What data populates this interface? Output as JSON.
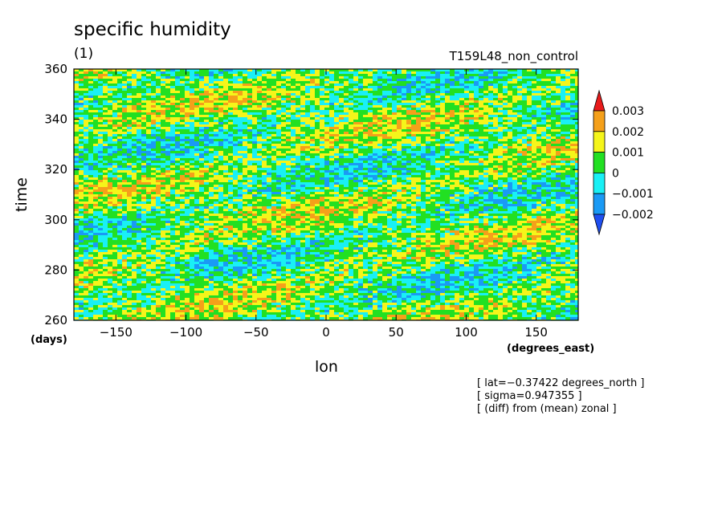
{
  "chart_data": {
    "type": "heatmap",
    "title": "specific humidity",
    "subtitle": "(1)",
    "experiment": "T159L48_non_control",
    "xlabel": "lon",
    "ylabel": "time",
    "x_unit": "(degrees_east)",
    "y_unit": "(days)",
    "xlim": [
      -180,
      180
    ],
    "ylim": [
      260,
      360
    ],
    "x_ticks": [
      -150,
      -100,
      -50,
      0,
      50,
      100,
      150
    ],
    "y_ticks": [
      260,
      280,
      300,
      320,
      340,
      360
    ],
    "colorbar": {
      "levels": [
        "0.003",
        "0.002",
        "0.001",
        "0",
        "−0.001",
        "−0.002"
      ],
      "level_values": [
        0.003,
        0.002,
        0.001,
        0,
        -0.001,
        -0.002
      ],
      "colors": [
        "#1f4ff0",
        "#1a9af5",
        "#19f0f5",
        "#22e022",
        "#f5f51a",
        "#f5a01a",
        "#e81b1b"
      ],
      "extend": "both"
    },
    "annotations": [
      "[ lat=−0.37422 degrees_north ]",
      "[ sigma=0.947355 ]",
      "[ (diff) from (mean) zonal ]"
    ]
  }
}
